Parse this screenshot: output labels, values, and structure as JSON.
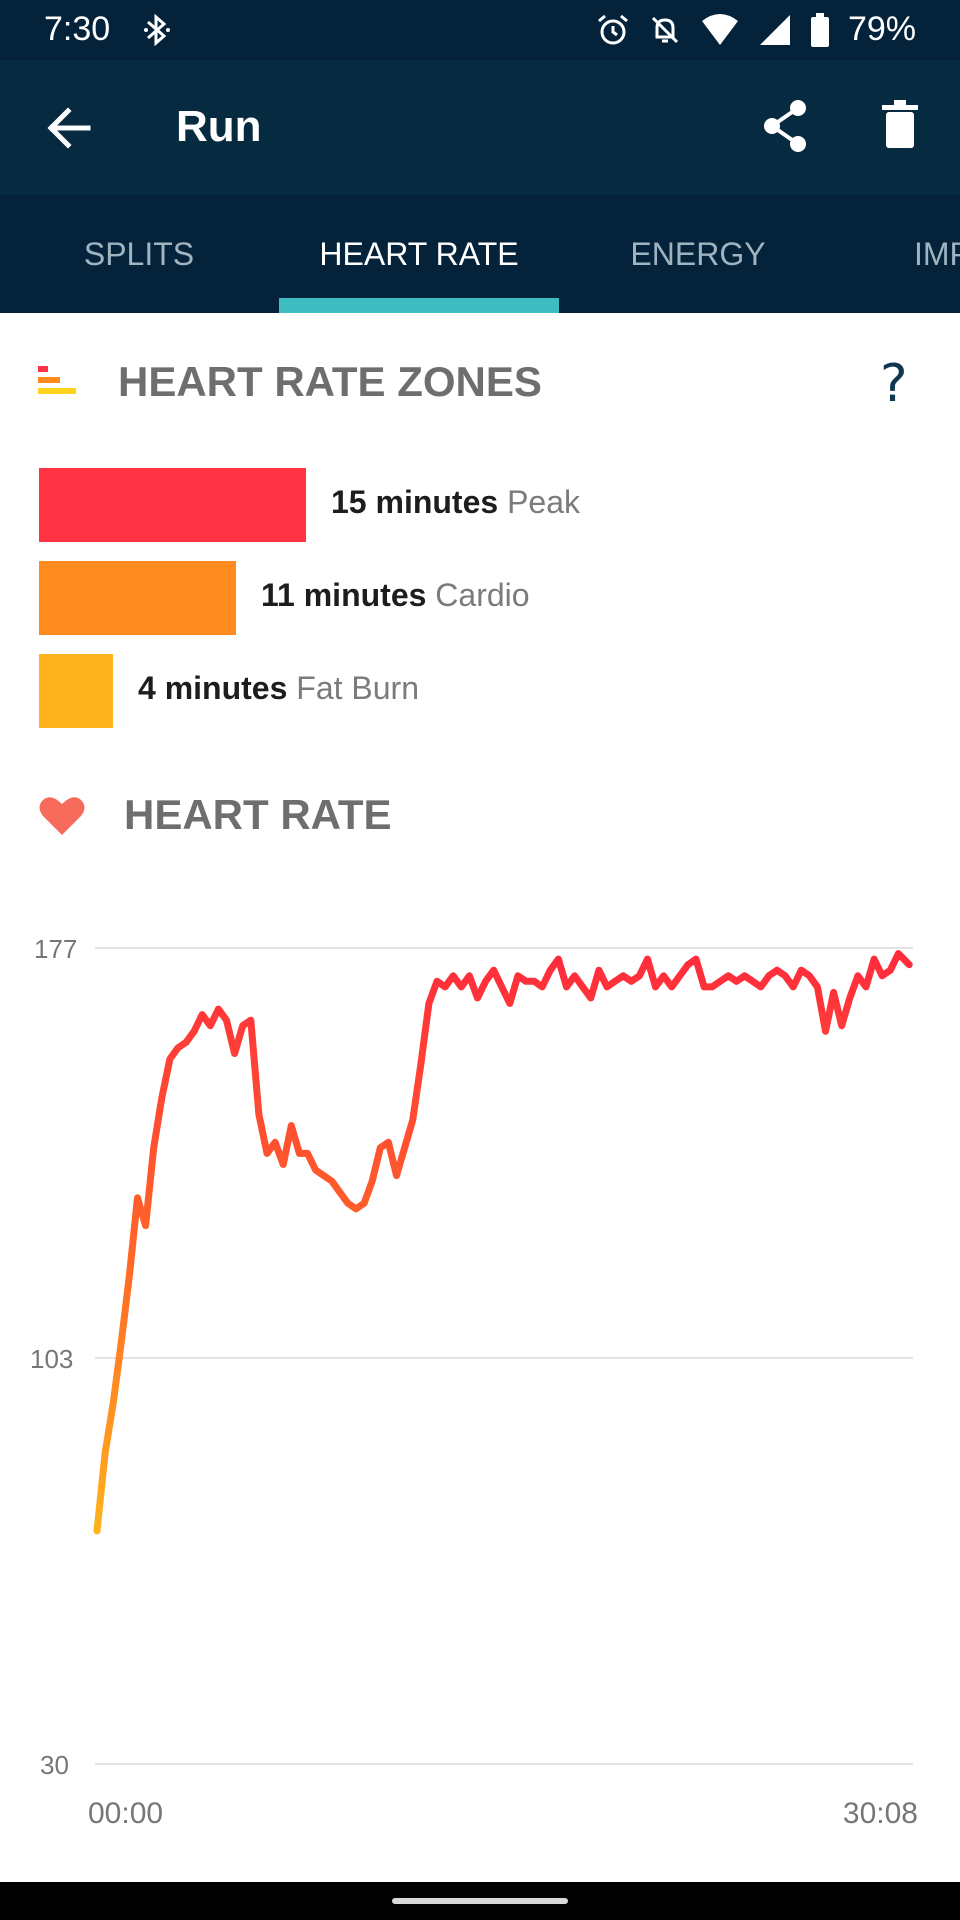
{
  "status": {
    "time": "7:30",
    "battery": "79%",
    "icons": [
      "bluetooth-icon",
      "alarm-icon",
      "notifications-off-icon",
      "wifi-icon",
      "cell-signal-icon",
      "battery-icon"
    ]
  },
  "app_bar": {
    "title": "Run",
    "icons": [
      "arrow-back-icon",
      "share-icon",
      "trash-icon"
    ]
  },
  "tabs": [
    {
      "label": "SPLITS",
      "active": false
    },
    {
      "label": "HEART RATE",
      "active": true
    },
    {
      "label": "ENERGY",
      "active": false
    },
    {
      "label": "IMPACT",
      "active": false
    }
  ],
  "zones": {
    "title": "HEART RATE ZONES",
    "help": "?",
    "items": [
      {
        "minutes": "15 minutes",
        "name": "Peak",
        "value": 15,
        "color": "#ff3344"
      },
      {
        "minutes": "11 minutes",
        "name": "Cardio",
        "value": 11,
        "color": "#ff8a1e"
      },
      {
        "minutes": "4 minutes",
        "name": "Fat Burn",
        "value": 4,
        "color": "#ffb31c"
      }
    ]
  },
  "heart_rate": {
    "title": "HEART RATE"
  },
  "chart_data": {
    "type": "line",
    "title": "",
    "xlabel": "",
    "ylabel": "",
    "x_tick_labels": [
      "00:00",
      "30:08"
    ],
    "y_ticks": [
      30,
      103,
      177
    ],
    "ylim": [
      30,
      177
    ],
    "xlim_minutes": [
      0,
      30.13
    ],
    "grid": true,
    "zone_colors": {
      "fat_burn": "#ffb31c",
      "cardio": "#ff6a26",
      "peak": "#ff2a3d"
    },
    "series": [
      {
        "x": [
          0,
          0.3,
          0.6,
          0.9,
          1.2,
          1.5,
          1.8,
          2.1,
          2.4,
          2.7,
          3.0,
          3.3,
          3.6,
          3.9,
          4.2,
          4.5,
          4.8,
          5.1,
          5.4,
          5.7,
          6.0,
          6.3,
          6.6,
          6.9,
          7.2,
          7.5,
          7.8,
          8.1,
          8.4,
          8.7,
          9.0,
          9.3,
          9.6,
          9.9,
          10.2,
          10.5,
          10.8,
          11.1,
          11.4,
          11.7,
          12.0,
          12.3,
          12.6,
          12.9,
          13.2,
          13.5,
          13.8,
          14.1,
          14.4,
          14.7,
          15.0,
          15.3,
          15.6,
          15.9,
          16.2,
          16.5,
          16.8,
          17.1,
          17.4,
          17.7,
          18.0,
          18.3,
          18.6,
          18.9,
          19.2,
          19.5,
          19.8,
          20.1,
          20.4,
          20.7,
          21.0,
          21.3,
          21.6,
          21.9,
          22.2,
          22.5,
          22.8,
          23.1,
          23.4,
          23.7,
          24.0,
          24.3,
          24.6,
          24.9,
          25.2,
          25.5,
          25.8,
          26.1,
          26.4,
          26.7,
          27.0,
          27.3,
          27.6,
          27.9,
          28.2,
          28.5,
          28.8,
          29.1,
          29.4,
          29.7,
          30.1
        ],
        "y": [
          72,
          86,
          95,
          106,
          118,
          132,
          127,
          141,
          150,
          157,
          159,
          160,
          162,
          165,
          163,
          166,
          164,
          158,
          163,
          164,
          147,
          140,
          142,
          138,
          145,
          140,
          140,
          137,
          136,
          135,
          133,
          131,
          130,
          131,
          135,
          141,
          142,
          136,
          141,
          146,
          156,
          167,
          171,
          170,
          172,
          170,
          172,
          168,
          171,
          173,
          170,
          167,
          172,
          171,
          171,
          170,
          173,
          175,
          170,
          172,
          170,
          168,
          173,
          170,
          171,
          172,
          171,
          172,
          175,
          170,
          172,
          170,
          172,
          174,
          175,
          170,
          170,
          171,
          172,
          171,
          172,
          171,
          170,
          172,
          173,
          172,
          170,
          173,
          172,
          170,
          162,
          169,
          163,
          168,
          172,
          170,
          175,
          172,
          173,
          176,
          174
        ]
      }
    ]
  }
}
